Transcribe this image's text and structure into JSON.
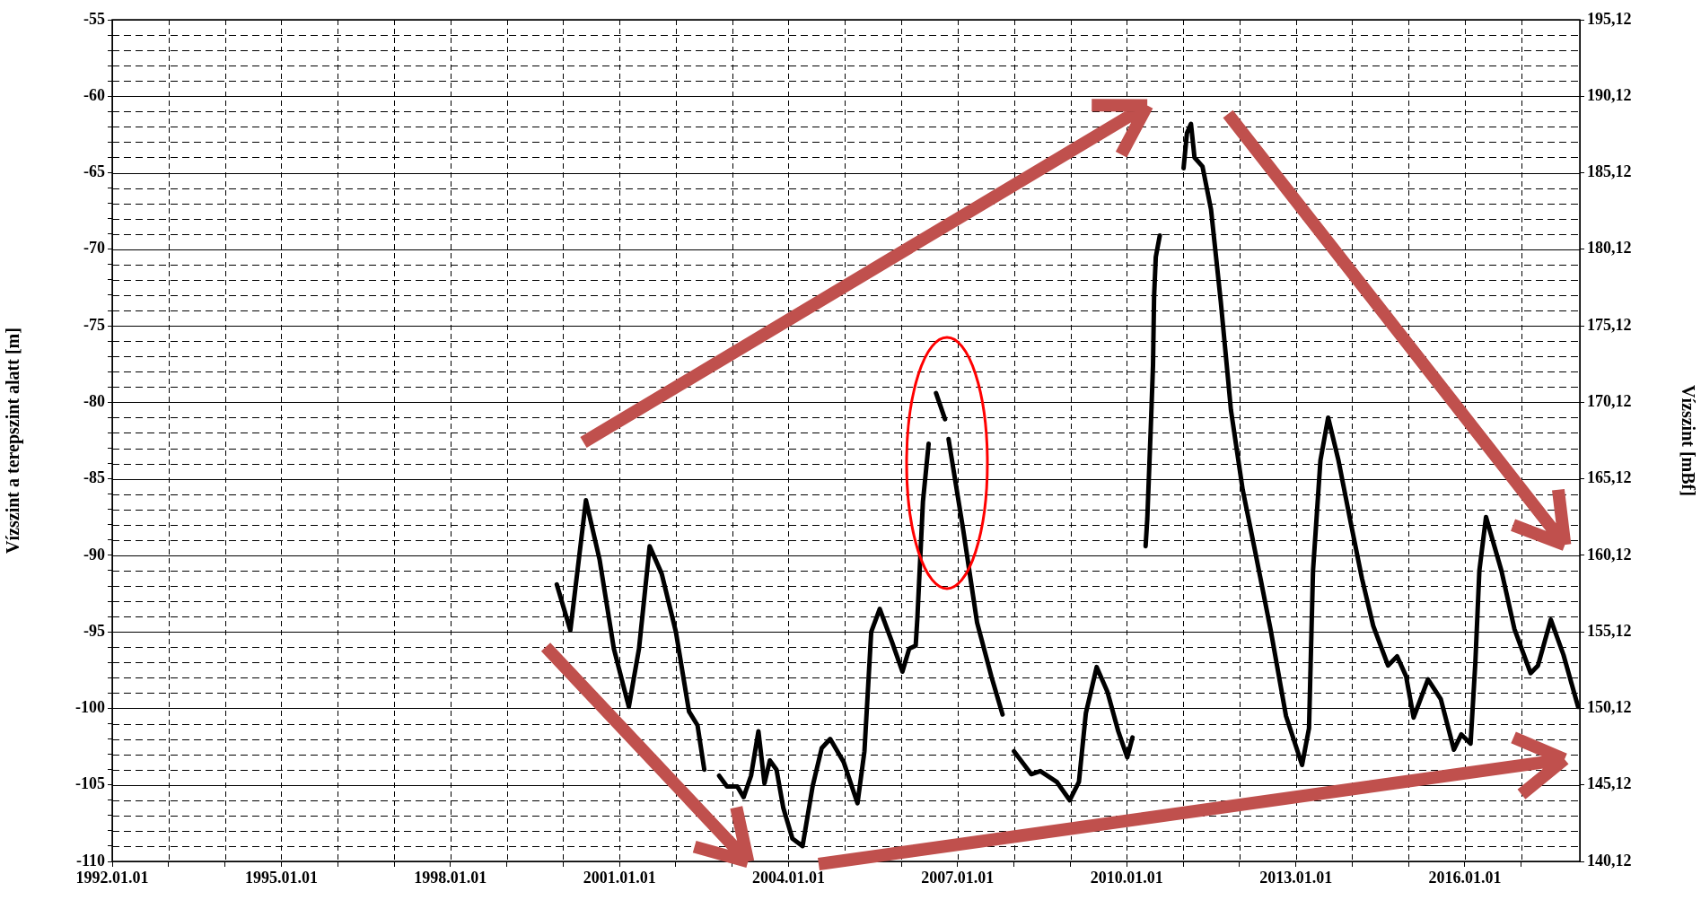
{
  "chart_data": {
    "type": "line",
    "ylabel": "Vízszint a terepszint alatt [m]",
    "y2label": "Vízszint [mBf]",
    "grid": true,
    "xlim": [
      "1992-01-01",
      "2018-01-15"
    ],
    "xticks": [
      {
        "value": "1992-01-01",
        "label": "1992.01.01"
      },
      {
        "value": "1993-01-01",
        "label": null
      },
      {
        "value": "1994-01-01",
        "label": null
      },
      {
        "value": "1995-01-01",
        "label": "1995.01.01"
      },
      {
        "value": "1996-01-01",
        "label": null
      },
      {
        "value": "1997-01-01",
        "label": null
      },
      {
        "value": "1998-01-01",
        "label": "1998.01.01"
      },
      {
        "value": "1999-01-01",
        "label": null
      },
      {
        "value": "2000-01-01",
        "label": null
      },
      {
        "value": "2001-01-01",
        "label": "2001.01.01"
      },
      {
        "value": "2002-01-01",
        "label": null
      },
      {
        "value": "2003-01-01",
        "label": null
      },
      {
        "value": "2004-01-01",
        "label": "2004.01.01"
      },
      {
        "value": "2005-01-01",
        "label": null
      },
      {
        "value": "2006-01-01",
        "label": null
      },
      {
        "value": "2007-01-01",
        "label": "2007.01.01"
      },
      {
        "value": "2008-01-01",
        "label": null
      },
      {
        "value": "2009-01-01",
        "label": null
      },
      {
        "value": "2010-01-01",
        "label": "2010.01.01"
      },
      {
        "value": "2011-01-01",
        "label": null
      },
      {
        "value": "2012-01-01",
        "label": null
      },
      {
        "value": "2013-01-01",
        "label": "2013.01.01"
      },
      {
        "value": "2014-01-01",
        "label": null
      },
      {
        "value": "2015-01-01",
        "label": null
      },
      {
        "value": "2016-01-01",
        "label": "2016.01.01"
      },
      {
        "value": "2017-01-01",
        "label": null
      }
    ],
    "ylim": [
      -110,
      -55
    ],
    "yticks": [
      -110,
      {
        "value": -109,
        "label": null
      },
      {
        "value": -108,
        "label": null
      },
      {
        "value": -107,
        "label": null
      },
      {
        "value": -106,
        "label": null
      },
      -105,
      {
        "value": -104,
        "label": null
      },
      {
        "value": -103,
        "label": null
      },
      {
        "value": -102,
        "label": null
      },
      {
        "value": -101,
        "label": null
      },
      -100,
      {
        "value": -99,
        "label": null
      },
      {
        "value": -98,
        "label": null
      },
      {
        "value": -97,
        "label": null
      },
      {
        "value": -96,
        "label": null
      },
      -95,
      {
        "value": -94,
        "label": null
      },
      {
        "value": -93,
        "label": null
      },
      {
        "value": -92,
        "label": null
      },
      {
        "value": -91,
        "label": null
      },
      -90,
      {
        "value": -89,
        "label": null
      },
      {
        "value": -88,
        "label": null
      },
      {
        "value": -87,
        "label": null
      },
      {
        "value": -86,
        "label": null
      },
      -85,
      {
        "value": -84,
        "label": null
      },
      {
        "value": -83,
        "label": null
      },
      {
        "value": -82,
        "label": null
      },
      {
        "value": -81,
        "label": null
      },
      -80,
      {
        "value": -79,
        "label": null
      },
      {
        "value": -78,
        "label": null
      },
      {
        "value": -77,
        "label": null
      },
      {
        "value": -76,
        "label": null
      },
      -75,
      {
        "value": -74,
        "label": null
      },
      {
        "value": -73,
        "label": null
      },
      {
        "value": -72,
        "label": null
      },
      {
        "value": -71,
        "label": null
      },
      -70,
      {
        "value": -69,
        "label": null
      },
      {
        "value": -68,
        "label": null
      },
      {
        "value": -67,
        "label": null
      },
      {
        "value": -66,
        "label": null
      },
      -65,
      {
        "value": -64,
        "label": null
      },
      {
        "value": -63,
        "label": null
      },
      {
        "value": -62,
        "label": null
      },
      {
        "value": -61,
        "label": null
      },
      -60,
      {
        "value": -59,
        "label": null
      },
      {
        "value": -58,
        "label": null
      },
      {
        "value": -57,
        "label": null
      },
      {
        "value": -56,
        "label": null
      },
      -55
    ],
    "y2lim": [
      140.12,
      195.12
    ],
    "y2ticks": [
      {
        "value": 140.12,
        "label": "140,12"
      },
      {
        "value": 145.12,
        "label": "145,12"
      },
      {
        "value": 150.12,
        "label": "150,12"
      },
      {
        "value": 155.12,
        "label": "155,12"
      },
      {
        "value": 160.12,
        "label": "160,12"
      },
      {
        "value": 165.12,
        "label": "165,12"
      },
      {
        "value": 170.12,
        "label": "170,12"
      },
      {
        "value": 175.12,
        "label": "175,12"
      },
      {
        "value": 180.12,
        "label": "180,12"
      },
      {
        "value": 185.12,
        "label": "185,12"
      },
      {
        "value": 190.12,
        "label": "190,12"
      },
      {
        "value": 195.12,
        "label": "195,12"
      }
    ],
    "x": [
      "1999-11-21",
      "2000-02-17",
      "2000-05-28",
      "2000-08-25",
      "2000-11-25",
      "2001-03-02",
      "2001-05-07",
      "2001-07-15",
      "2001-10-01",
      "2002-01-01",
      "2002-03-27",
      "2002-05-21",
      "2002-07-04",
      "2002-08-15",
      "2002-10-08",
      "2002-11-28",
      "2003-02-03",
      "2003-03-16",
      "2003-05-03",
      "2003-06-20",
      "2003-07-29",
      "2003-09-02",
      "2003-10-15",
      "2003-11-28",
      "2004-01-26",
      "2004-04-01",
      "2004-06-05",
      "2004-08-03",
      "2004-09-27",
      "2004-12-23",
      "2005-03-23",
      "2005-05-07",
      "2005-06-20",
      "2005-08-14",
      "2005-11-03",
      "2006-01-08",
      "2006-02-21",
      "2006-04-04",
      "2006-04-15",
      "2006-05-21",
      "2006-06-27",
      "2006-07-10",
      "2006-08-14",
      "2006-10-11",
      "2006-10-20",
      "2006-11-03",
      "2007-02-07",
      "2007-05-07",
      "2007-08-10",
      "2007-10-19",
      "2007-11-20",
      "2008-01-01",
      "2008-04-22",
      "2008-06-20",
      "2008-10-04",
      "2008-12-27",
      "2009-02-25",
      "2009-04-11",
      "2009-06-20",
      "2009-08-28",
      "2009-11-07",
      "2010-01-04",
      "2010-02-07",
      "2010-03-15",
      "2010-05-03",
      "2010-05-14",
      "2010-06-05",
      "2010-06-20",
      "2010-06-27",
      "2010-07-08",
      "2010-08-03",
      "2010-10-15",
      "2011-01-04",
      "2011-01-26",
      "2011-02-21",
      "2011-03-16",
      "2011-05-07",
      "2011-07-01",
      "2011-09-02",
      "2011-11-07",
      "2012-01-22",
      "2012-04-11",
      "2012-07-22",
      "2012-10-29",
      "2013-02-10",
      "2013-03-27",
      "2013-04-22",
      "2013-06-09",
      "2013-07-29",
      "2013-10-04",
      "2013-12-27",
      "2014-03-05",
      "2014-05-17",
      "2014-08-21",
      "2014-10-19",
      "2014-12-16",
      "2015-02-03",
      "2015-05-07",
      "2015-07-29",
      "2015-10-22",
      "2015-12-09",
      "2016-02-07",
      "2016-03-09",
      "2016-04-04",
      "2016-05-17",
      "2016-08-25",
      "2016-11-17",
      "2017-03-02",
      "2017-04-19",
      "2017-07-11",
      "2017-10-01",
      "2018-01-04"
    ],
    "series": [
      {
        "color": "#000000",
        "values": [
          -91.9,
          -94.9,
          -86.4,
          -90.3,
          -96.1,
          -99.9,
          -96.1,
          -89.4,
          -91.2,
          -95.0,
          -100.2,
          -101.1,
          -104.0,
          null,
          -104.4,
          -105.1,
          -105.1,
          -105.8,
          -104.4,
          -101.5,
          -104.9,
          -103.4,
          -104.0,
          -106.5,
          -108.5,
          -109.0,
          -105.1,
          -102.6,
          -102.0,
          -103.5,
          -106.2,
          -102.8,
          -95.0,
          -93.5,
          -95.7,
          -97.6,
          -96.1,
          -95.9,
          -94.1,
          -86.5,
          -82.7,
          null,
          -79.4,
          -81.1,
          null,
          -82.4,
          -88.4,
          -94.4,
          -98.0,
          -100.4,
          null,
          -102.8,
          -104.3,
          -104.1,
          -104.8,
          -106.0,
          -104.8,
          -100.3,
          -97.3,
          -98.9,
          -101.5,
          -103.2,
          -101.9,
          null,
          -89.4,
          -87.6,
          -81.8,
          -77.6,
          -73.1,
          -70.5,
          -69.1,
          null,
          -64.7,
          -62.4,
          -61.8,
          -64.0,
          -64.6,
          -67.4,
          -73.4,
          -80.5,
          -85.7,
          -89.7,
          -94.9,
          -100.5,
          -103.7,
          -101.3,
          -91.0,
          -83.8,
          -81.0,
          -83.8,
          -88.1,
          -91.5,
          -94.6,
          -97.2,
          -96.6,
          -97.9,
          -100.6,
          -98.1,
          -99.4,
          -102.7,
          -101.7,
          -102.3,
          -97.0,
          -91.0,
          -87.5,
          -91.0,
          -94.8,
          -97.7,
          -97.2,
          -94.2,
          -96.5,
          -99.9
        ]
      }
    ]
  }
}
